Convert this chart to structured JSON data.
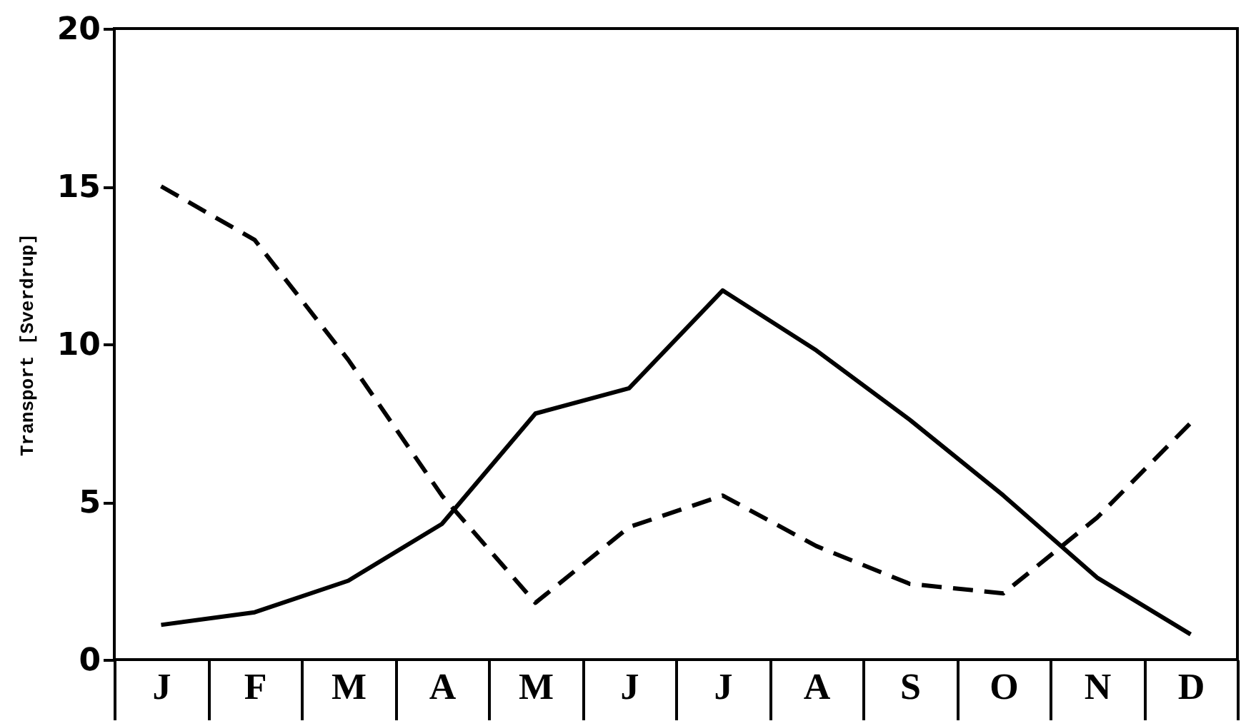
{
  "chart_data": {
    "type": "line",
    "ylabel": "Transport [Sverdrup]",
    "categories": [
      "J",
      "F",
      "M",
      "A",
      "M",
      "J",
      "J",
      "A",
      "S",
      "O",
      "N",
      "D"
    ],
    "ylim": [
      0,
      20
    ],
    "yticks": [
      0,
      5,
      10,
      15,
      20
    ],
    "grid": false,
    "legend": false,
    "marker": "none",
    "series": [
      {
        "color": "#000000",
        "line_style": "solid",
        "values": [
          1.1,
          1.5,
          2.5,
          4.3,
          7.8,
          8.6,
          11.7,
          9.8,
          7.6,
          5.2,
          2.6,
          0.8
        ]
      },
      {
        "color": "#000000",
        "line_style": "dashed",
        "values": [
          15.0,
          13.3,
          9.5,
          5.2,
          1.8,
          4.2,
          5.2,
          3.6,
          2.4,
          2.1,
          4.5,
          7.5
        ]
      }
    ]
  }
}
